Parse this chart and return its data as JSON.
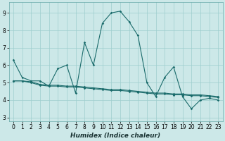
{
  "xlabel": "Humidex (Indice chaleur)",
  "xlim": [
    -0.5,
    23.5
  ],
  "ylim": [
    2.8,
    9.6
  ],
  "yticks": [
    3,
    4,
    5,
    6,
    7,
    8,
    9
  ],
  "xticks": [
    0,
    1,
    2,
    3,
    4,
    5,
    6,
    7,
    8,
    9,
    10,
    11,
    12,
    13,
    14,
    15,
    16,
    17,
    18,
    19,
    20,
    21,
    22,
    23
  ],
  "bg_color": "#cce8e8",
  "grid_color": "#9ecece",
  "line_color": "#1a6b6b",
  "line_main": [
    6.3,
    5.3,
    5.1,
    5.1,
    4.8,
    5.8,
    6.0,
    4.4,
    7.3,
    6.0,
    8.4,
    9.0,
    9.1,
    8.5,
    7.7,
    5.0,
    4.2,
    5.3,
    5.9,
    4.2,
    3.5,
    4.0,
    4.1,
    4.0
  ],
  "line_flat1": [
    5.1,
    5.1,
    5.0,
    4.85,
    4.8,
    4.8,
    4.75,
    4.75,
    4.7,
    4.65,
    4.6,
    4.55,
    4.55,
    4.5,
    4.45,
    4.4,
    4.35,
    4.35,
    4.3,
    4.3,
    4.25,
    4.25,
    4.2,
    4.15
  ],
  "line_flat2": [
    5.1,
    5.1,
    5.05,
    4.9,
    4.85,
    4.85,
    4.8,
    4.8,
    4.75,
    4.7,
    4.65,
    4.6,
    4.6,
    4.55,
    4.5,
    4.45,
    4.4,
    4.4,
    4.35,
    4.35,
    4.3,
    4.3,
    4.25,
    4.2
  ]
}
